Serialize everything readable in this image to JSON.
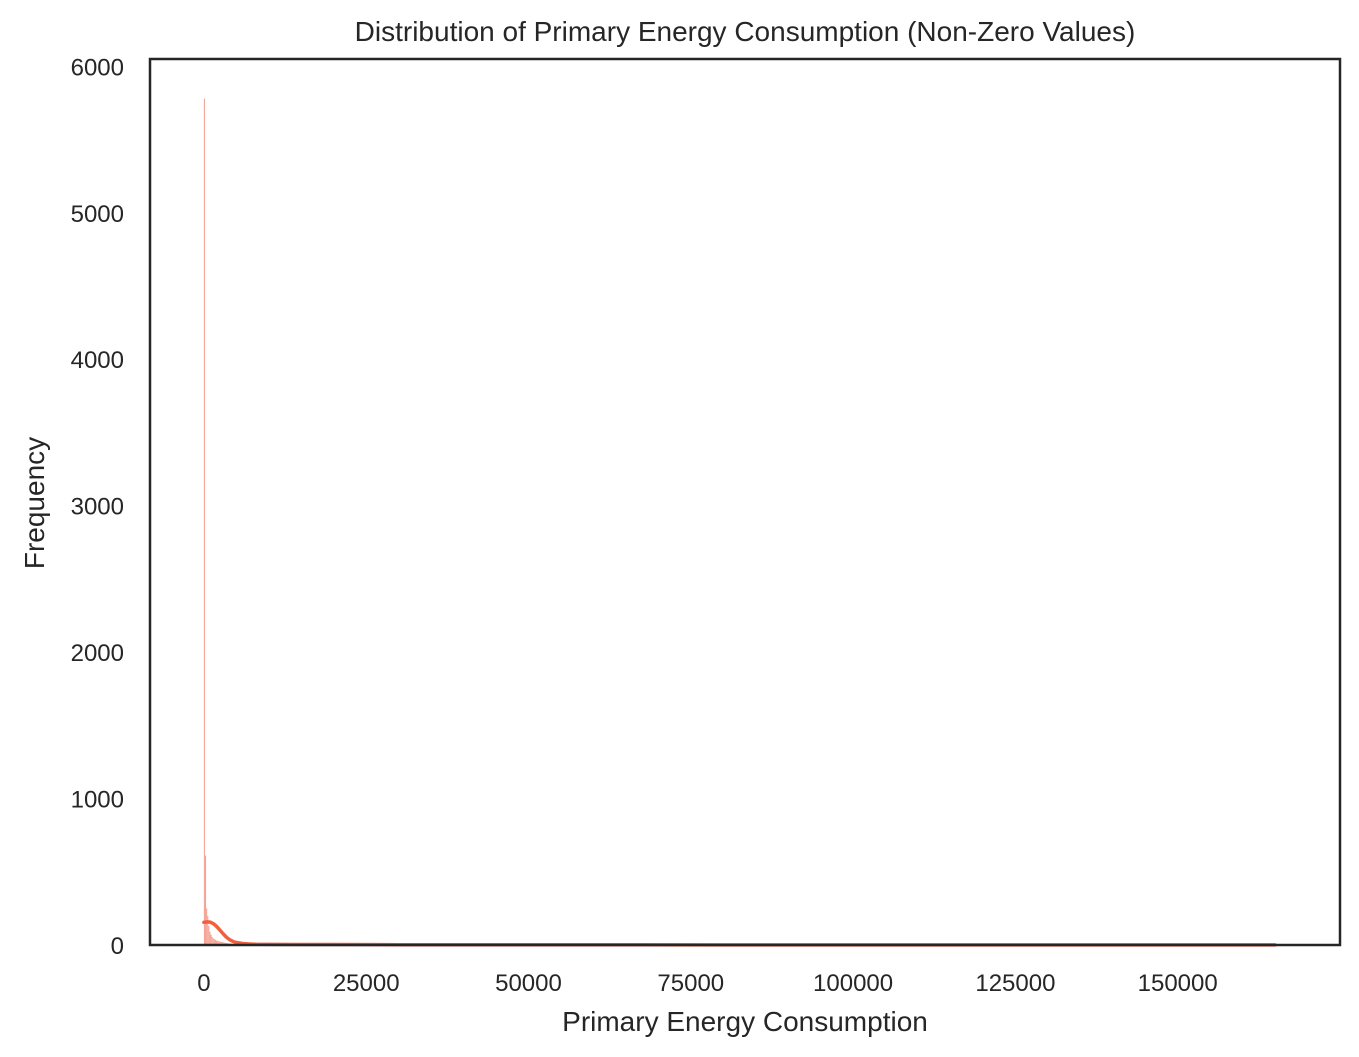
{
  "chart_data": {
    "type": "bar",
    "subtype": "histogram-with-kde",
    "title": "Distribution of Primary Energy Consumption (Non-Zero Values)",
    "xlabel": "Primary Energy Consumption",
    "ylabel": "Frequency",
    "xlim": [
      -8300,
      175000
    ],
    "ylim": [
      0,
      6050
    ],
    "xticks": [
      0,
      25000,
      50000,
      75000,
      100000,
      125000,
      150000
    ],
    "yticks": [
      0,
      1000,
      2000,
      3000,
      4000,
      5000,
      6000
    ],
    "grid": false,
    "bin_width": 170,
    "bins": [
      {
        "x": 0,
        "count": 5780
      },
      {
        "x": 170,
        "count": 610
      },
      {
        "x": 340,
        "count": 250
      },
      {
        "x": 510,
        "count": 200
      },
      {
        "x": 680,
        "count": 130
      },
      {
        "x": 850,
        "count": 90
      },
      {
        "x": 1020,
        "count": 70
      },
      {
        "x": 1190,
        "count": 55
      },
      {
        "x": 1360,
        "count": 45
      },
      {
        "x": 1530,
        "count": 40
      },
      {
        "x": 1700,
        "count": 35
      },
      {
        "x": 1870,
        "count": 30
      },
      {
        "x": 2040,
        "count": 30
      },
      {
        "x": 2210,
        "count": 25
      },
      {
        "x": 2380,
        "count": 25
      },
      {
        "x": 2550,
        "count": 20
      },
      {
        "x": 2720,
        "count": 20
      },
      {
        "x": 2890,
        "count": 18
      },
      {
        "x": 3060,
        "count": 16
      },
      {
        "x": 3230,
        "count": 15
      },
      {
        "x": 3400,
        "count": 14
      },
      {
        "x": 3570,
        "count": 12
      },
      {
        "x": 3740,
        "count": 11
      },
      {
        "x": 3910,
        "count": 10
      },
      {
        "x": 4080,
        "count": 9
      },
      {
        "x": 4250,
        "count": 8
      },
      {
        "x": 4420,
        "count": 7
      },
      {
        "x": 4590,
        "count": 6
      },
      {
        "x": 4760,
        "count": 6
      },
      {
        "x": 4930,
        "count": 5
      },
      {
        "x": 5100,
        "count": 5
      },
      {
        "x": 5440,
        "count": 4
      },
      {
        "x": 5780,
        "count": 3
      },
      {
        "x": 6120,
        "count": 3
      },
      {
        "x": 6800,
        "count": 2
      },
      {
        "x": 7480,
        "count": 2
      },
      {
        "x": 8500,
        "count": 1
      },
      {
        "x": 10200,
        "count": 1
      }
    ],
    "kde": {
      "x": [
        0,
        500,
        1000,
        1500,
        2000,
        2500,
        3000,
        3500,
        4000,
        4500,
        5000,
        6000,
        7000,
        8000,
        10000,
        15000,
        20000,
        30000,
        50000,
        80000,
        120000,
        165000
      ],
      "y": [
        155,
        158,
        156,
        145,
        125,
        100,
        75,
        52,
        35,
        24,
        17,
        10,
        7,
        5,
        4,
        3,
        3,
        2,
        2,
        1,
        1,
        1
      ]
    },
    "colors": {
      "bar": "#f4a598",
      "kde_line": "#f15f3f",
      "axes": "#262626"
    }
  }
}
